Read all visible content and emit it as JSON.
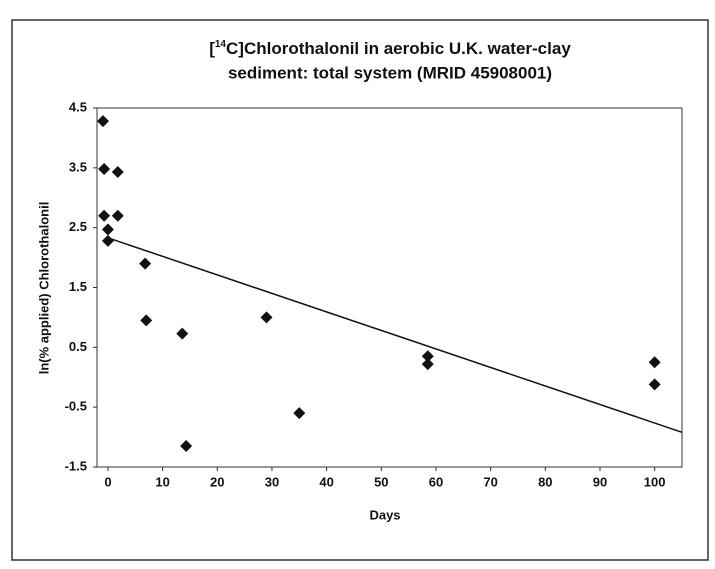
{
  "chart_data": {
    "type": "scatter",
    "title": [
      "[",
      "14",
      "C]Chlorothalonil in aerobic U.K. water-clay",
      "sediment: total system (MRID 45908001)"
    ],
    "x_label": "Days",
    "y_label": "ln(% applied) Chlorothalonil",
    "xlim": [
      -2,
      105
    ],
    "xticks": [
      0,
      10,
      20,
      30,
      40,
      50,
      60,
      70,
      80,
      90,
      100
    ],
    "ylim": [
      -1.5,
      4.5
    ],
    "yticks": [
      -1.5,
      -0.5,
      0.5,
      1.5,
      2.5,
      3.5,
      4.5
    ],
    "color": "#111111",
    "x": [
      -0.9,
      -0.7,
      1.8,
      -0.7,
      1.8,
      0,
      0,
      6.8,
      7,
      13.6,
      14.3,
      29,
      35,
      58.5,
      58.5,
      100,
      100
    ],
    "values": [
      4.28,
      3.48,
      3.43,
      2.7,
      2.7,
      2.47,
      2.28,
      1.9,
      0.95,
      0.73,
      -1.15,
      1.0,
      -0.6,
      0.35,
      0.22,
      0.25,
      -0.12
    ],
    "trendline": {
      "x": [
        0,
        105
      ],
      "values": [
        2.33,
        -0.92
      ]
    }
  }
}
